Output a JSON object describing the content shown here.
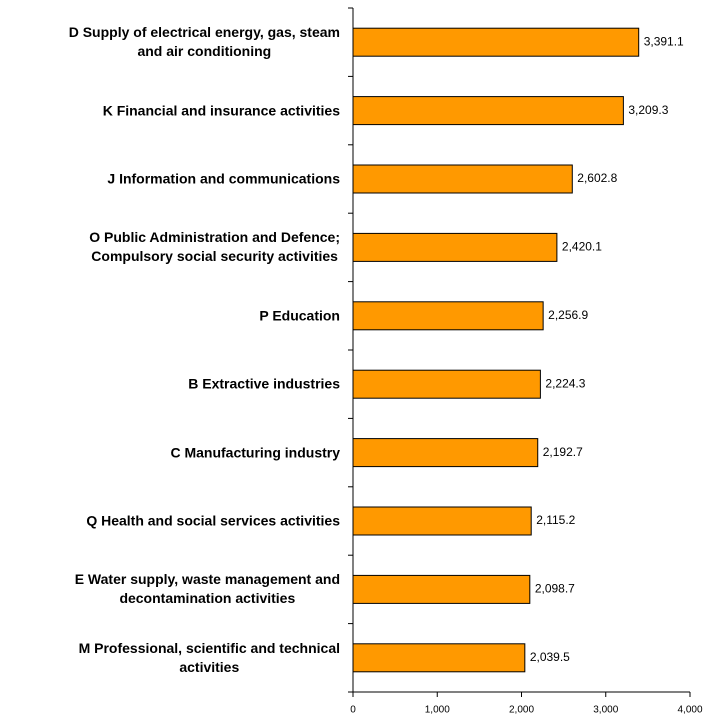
{
  "chart_data": {
    "type": "hbar",
    "categories": [
      "D Supply of electrical energy, gas, steam\nand air conditioning",
      "K Financial and insurance activities",
      "J Information and communications",
      "O Public Administration and Defence;\nCompulsory social security activities",
      "P Education",
      "B Extractive industries",
      "C Manufacturing industry",
      "Q Health and social services activities",
      "E  Water supply, waste management and\ndecontamination activities",
      "M Professional, scientific and technical\nactivities"
    ],
    "values": [
      3391.1,
      3209.3,
      2602.8,
      2420.1,
      2256.9,
      2224.3,
      2192.7,
      2115.2,
      2098.7,
      2039.5
    ],
    "value_labels": [
      "3,391.1",
      "3,209.3",
      "2,602.8",
      "2,420.1",
      "2,256.9",
      "2,224.3",
      "2,192.7",
      "2,115.2",
      "2,098.7",
      "2,039.5"
    ],
    "color": "#ff9900",
    "xlim": [
      0,
      4000
    ],
    "xticks": [
      0,
      {
        "value": 1000,
        "label": "1,000"
      },
      {
        "value": 2000,
        "label": "2,000"
      },
      {
        "value": 3000,
        "label": "3,000"
      },
      {
        "value": 4000,
        "label": "4,000"
      }
    ]
  }
}
